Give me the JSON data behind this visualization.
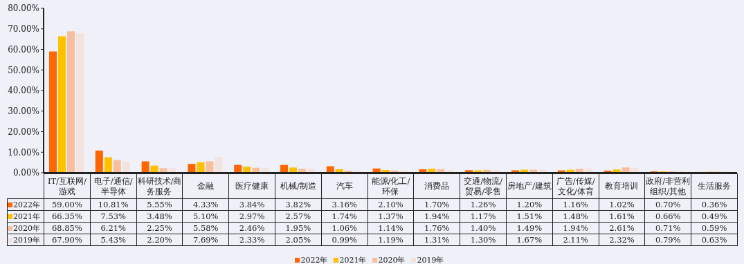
{
  "chart_data": {
    "type": "bar",
    "categories": [
      "IT/互联网/游戏",
      "电子/通信/半导体",
      "科研技术/商务服务",
      "金融",
      "医疗健康",
      "机械/制造",
      "汽车",
      "能源/化工/环保",
      "消费品",
      "交通/物流/贸易/零售",
      "房地产/建筑",
      "广告/传媒/文化/体育",
      "教育培训",
      "政府/非营利组织/其他",
      "生活服务"
    ],
    "series": [
      {
        "name": "2022年",
        "color": "#ff6600",
        "values": [
          59.0,
          10.81,
          5.55,
          4.33,
          3.84,
          3.82,
          3.16,
          2.1,
          1.7,
          1.26,
          1.2,
          1.16,
          1.02,
          0.7,
          0.36
        ],
        "value_labels": [
          "59.00%",
          "10.81%",
          "5.55%",
          "4.33%",
          "3.84%",
          "3.82%",
          "3.16%",
          "2.10%",
          "1.70%",
          "1.26%",
          "1.20%",
          "1.16%",
          "1.02%",
          "0.70%",
          "0.36%"
        ]
      },
      {
        "name": "2021年",
        "color": "#ffc000",
        "values": [
          66.35,
          7.53,
          3.48,
          5.1,
          2.97,
          2.57,
          1.74,
          1.37,
          1.94,
          1.17,
          1.51,
          1.48,
          1.61,
          0.66,
          0.49
        ],
        "value_labels": [
          "66.35%",
          "7.53%",
          "3.48%",
          "5.10%",
          "2.97%",
          "2.57%",
          "1.74%",
          "1.37%",
          "1.94%",
          "1.17%",
          "1.51%",
          "1.48%",
          "1.61%",
          "0.66%",
          "0.49%"
        ]
      },
      {
        "name": "2020年",
        "color": "#f8bf9f",
        "values": [
          68.85,
          6.21,
          2.25,
          5.58,
          2.46,
          1.95,
          1.06,
          1.14,
          1.76,
          1.4,
          1.49,
          1.94,
          2.61,
          0.71,
          0.59
        ],
        "value_labels": [
          "68.85%",
          "6.21%",
          "2.25%",
          "5.58%",
          "2.46%",
          "1.95%",
          "1.06%",
          "1.14%",
          "1.76%",
          "1.40%",
          "1.49%",
          "1.94%",
          "2.61%",
          "0.71%",
          "0.59%"
        ]
      },
      {
        "name": "2019年",
        "color": "#f2e3df",
        "values": [
          67.9,
          5.43,
          2.2,
          7.69,
          2.33,
          2.05,
          0.99,
          1.19,
          1.31,
          1.3,
          1.67,
          2.11,
          2.32,
          0.79,
          0.63
        ],
        "value_labels": [
          "67.90%",
          "5.43%",
          "2.20%",
          "7.69%",
          "2.33%",
          "2.05%",
          "0.99%",
          "1.19%",
          "1.31%",
          "1.30%",
          "1.67%",
          "2.11%",
          "2.32%",
          "0.79%",
          "0.63%"
        ]
      }
    ],
    "ylim": [
      0,
      80
    ],
    "yticks": [
      {
        "value": 0,
        "label": "0.00%"
      },
      {
        "value": 10,
        "label": "10.00%"
      },
      {
        "value": 20,
        "label": "20.00%"
      },
      {
        "value": 30,
        "label": "30.00%"
      },
      {
        "value": 40,
        "label": "40.00%"
      },
      {
        "value": 50,
        "label": "50.00%"
      },
      {
        "value": 60,
        "label": "60.00%"
      },
      {
        "value": 70,
        "label": "70.00%"
      },
      {
        "value": 80,
        "label": "80.00%"
      }
    ],
    "grid": false,
    "legend": "bottom"
  }
}
